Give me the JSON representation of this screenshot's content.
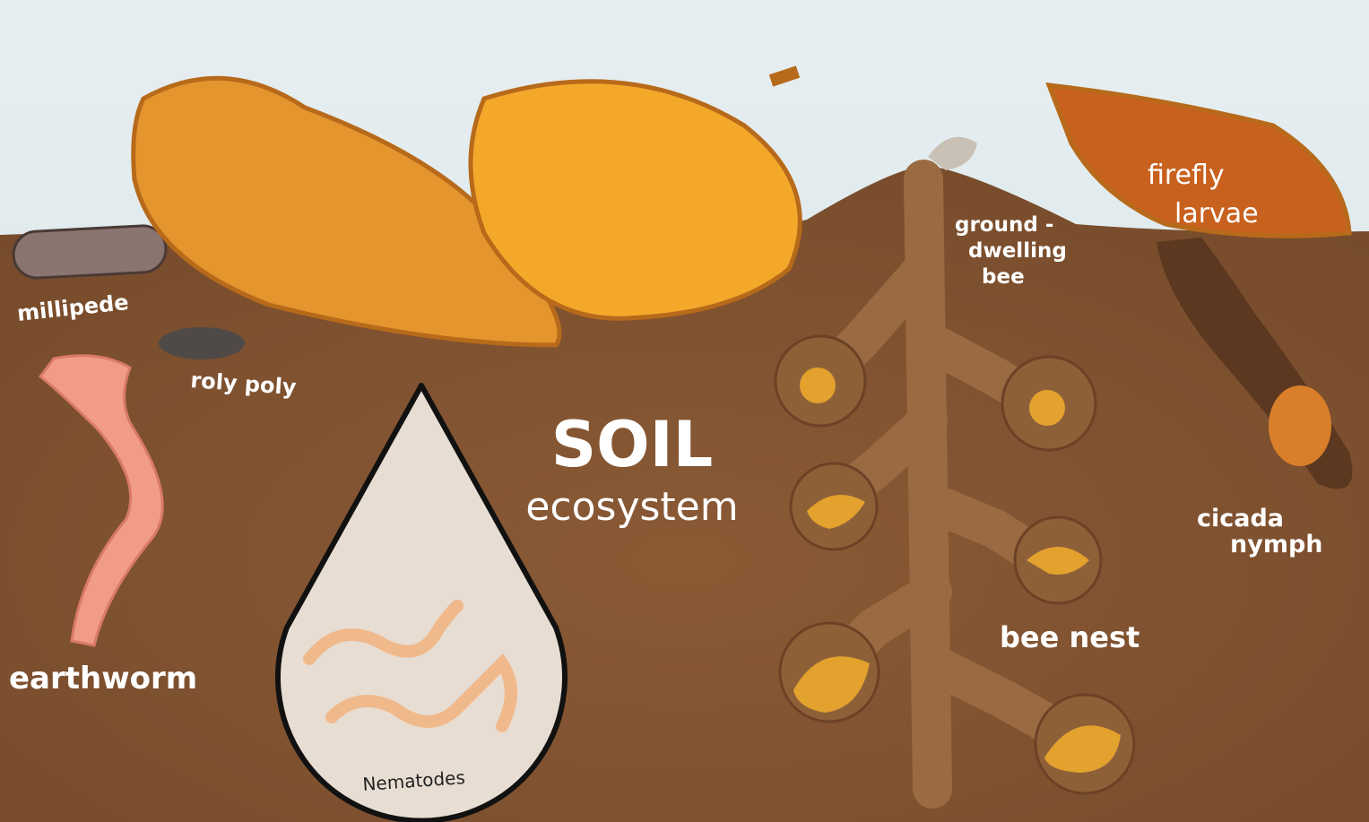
{
  "title": "SOIL",
  "subtitle": "ecosystem",
  "labels": {
    "millipede": "millipede",
    "roly_poly": "roly poly",
    "earthworm": "earthworm",
    "nematodes": "Nematodes",
    "ground_dwelling_bee": [
      "ground -",
      "dwelling",
      "bee"
    ],
    "bee_nest": "bee nest",
    "firefly_larvae": [
      "firefly",
      "larvae"
    ],
    "cicada_nymph": [
      "cicada",
      "nymph"
    ]
  }
}
